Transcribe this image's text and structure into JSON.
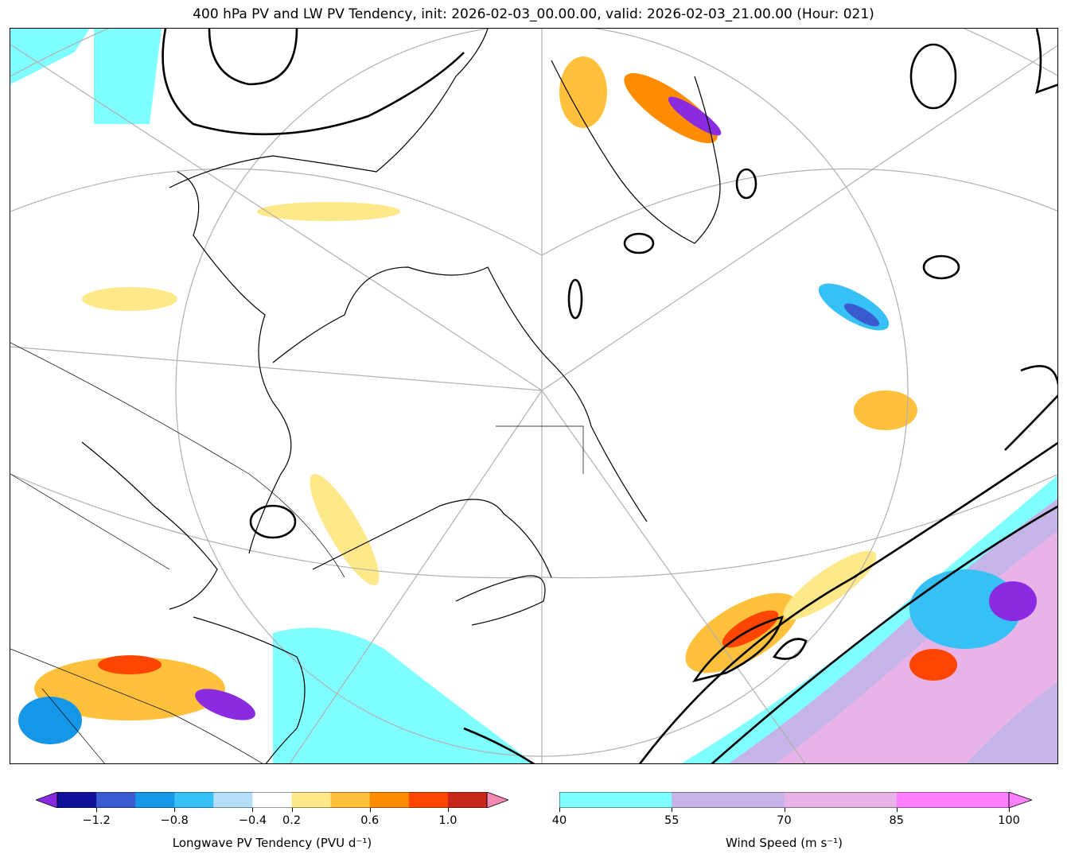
{
  "title": "400 hPa PV and LW PV Tendency, init: 2026-02-03_00.00.00, valid: 2026-02-03_21.00.00 (Hour: 021)",
  "pv_colorbar": {
    "label": "Longwave PV Tendency (PVU d⁻¹)",
    "ticks": [
      "−1.2",
      "−0.8",
      "−0.4",
      "0.2",
      "0.6",
      "1.0"
    ],
    "colors": [
      "#10119a",
      "#3a5bcf",
      "#1696e6",
      "#36c0f5",
      "#b5dff8",
      "#ffffff",
      "#ffe88a",
      "#ffc13c",
      "#ff8c00",
      "#ff4500",
      "#c8281a"
    ],
    "under_color": "#8a2be2",
    "over_color": "#f58bb4"
  },
  "wind_colorbar": {
    "label": "Wind Speed (m s⁻¹)",
    "ticks": [
      "40",
      "55",
      "70",
      "85",
      "100"
    ],
    "colors": [
      "#7fffff",
      "#c5b4e8",
      "#e8b4e8",
      "#ff80ff"
    ],
    "over_color": "#ff80ff"
  },
  "map": {
    "projection": "polar stereographic",
    "region": "Northeastern North America and North Atlantic",
    "coastline_color": "#000000",
    "graticule_color": "#b0b0b0",
    "pv_contour_color": "#000000"
  }
}
